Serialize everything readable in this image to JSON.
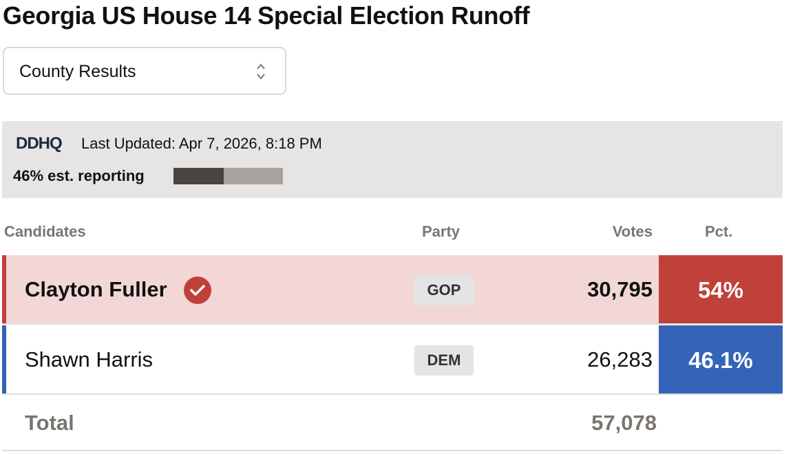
{
  "header": {
    "title": "Georgia US House 14 Special Election Runoff"
  },
  "select": {
    "value": "County Results"
  },
  "status": {
    "source": "DDHQ",
    "last_updated": "Last Updated: Apr 7, 2026, 8:18 PM",
    "reporting_label": "46% est. reporting",
    "reporting_pct": 46
  },
  "table": {
    "columns": [
      "Candidates",
      "Party",
      "Votes",
      "Pct."
    ],
    "rows": [
      {
        "name": "Clayton Fuller",
        "party": "GOP",
        "votes": "30,795",
        "pct": "54%",
        "winner": true,
        "color": "#c0403a",
        "tint": "#f3d7d7"
      },
      {
        "name": "Shawn Harris",
        "party": "DEM",
        "votes": "26,283",
        "pct": "46.1%",
        "winner": false,
        "color": "#3563b8",
        "tint": "#ffffff"
      }
    ],
    "total": {
      "label": "Total",
      "votes": "57,078"
    }
  }
}
